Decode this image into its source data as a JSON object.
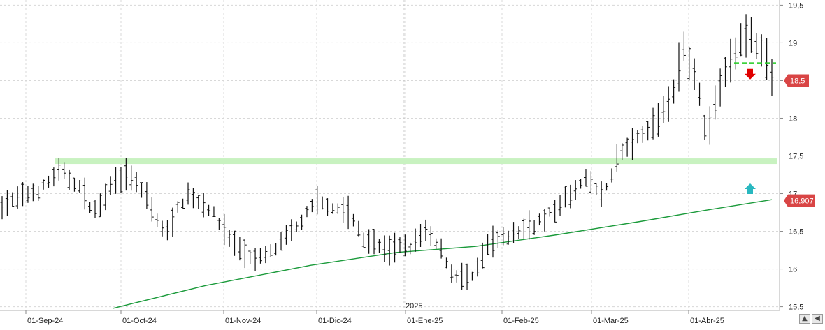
{
  "chart_data": {
    "type": "ohlc",
    "title": "",
    "xlabel": "",
    "ylabel": "",
    "ylim": [
      15.45,
      19.55
    ],
    "grid": true,
    "x_labels": [
      "01-Sep-24",
      "01-Oct-24",
      "01-Nov-24",
      "01-Dic-24",
      "01-Ene-25",
      "01-Feb-25",
      "01-Mar-25",
      "01-Abr-25"
    ],
    "year_marker": "2025",
    "y_ticks": [
      "15,5",
      "16",
      "16,5",
      "17",
      "17,5",
      "18",
      "18,5",
      "19",
      "19,5"
    ],
    "y_tick_values": [
      15.5,
      16,
      16.5,
      17,
      17.5,
      18,
      18.5,
      19,
      19.5
    ],
    "price_tags": [
      {
        "label": "18,5",
        "value": 18.5,
        "color": "#d94545"
      },
      {
        "label": "16,907",
        "value": 16.907,
        "color": "#d94545"
      }
    ],
    "support_line": {
      "value": 17.43,
      "from": "01-Sep-24",
      "color": "#c8f2c0"
    },
    "resistance_dashed": {
      "value": 18.73,
      "color": "#22cc22"
    },
    "moving_average": {
      "color": "#1a9a3a",
      "points": [
        [
          0.0,
          15.48
        ],
        [
          0.14,
          15.78
        ],
        [
          0.3,
          16.05
        ],
        [
          0.43,
          16.22
        ],
        [
          0.55,
          16.3
        ],
        [
          0.67,
          16.45
        ],
        [
          0.8,
          16.63
        ],
        [
          0.9,
          16.78
        ],
        [
          1.0,
          16.92
        ]
      ]
    },
    "markers": [
      {
        "name": "down-arrow-icon",
        "color": "#e00000",
        "value": 18.58
      },
      {
        "name": "up-arrow-icon",
        "color": "#29b8c0",
        "value": 17.06
      }
    ],
    "anchors": [
      [
        0.0,
        16.85
      ],
      [
        0.05,
        17.05
      ],
      [
        0.075,
        17.3
      ],
      [
        0.1,
        17.1
      ],
      [
        0.12,
        16.75
      ],
      [
        0.15,
        17.25
      ],
      [
        0.17,
        17.2
      ],
      [
        0.19,
        16.9
      ],
      [
        0.21,
        16.45
      ],
      [
        0.24,
        17.0
      ],
      [
        0.27,
        16.8
      ],
      [
        0.3,
        16.35
      ],
      [
        0.33,
        16.1
      ],
      [
        0.36,
        16.3
      ],
      [
        0.39,
        16.65
      ],
      [
        0.41,
        16.9
      ],
      [
        0.45,
        16.75
      ],
      [
        0.47,
        16.4
      ],
      [
        0.5,
        16.25
      ],
      [
        0.53,
        16.3
      ],
      [
        0.55,
        16.5
      ],
      [
        0.57,
        16.25
      ],
      [
        0.585,
        15.95
      ],
      [
        0.61,
        15.85
      ],
      [
        0.63,
        16.3
      ],
      [
        0.66,
        16.45
      ],
      [
        0.69,
        16.6
      ],
      [
        0.71,
        16.7
      ],
      [
        0.73,
        16.9
      ],
      [
        0.76,
        17.2
      ],
      [
        0.78,
        16.95
      ],
      [
        0.8,
        17.5
      ],
      [
        0.84,
        17.85
      ],
      [
        0.87,
        18.25
      ],
      [
        0.885,
        18.95
      ],
      [
        0.9,
        18.6
      ],
      [
        0.915,
        17.8
      ],
      [
        0.935,
        18.5
      ],
      [
        0.96,
        19.1
      ],
      [
        0.985,
        19.0
      ],
      [
        1.0,
        18.55
      ]
    ],
    "bar_count": 150,
    "noise_amplitude": 0.22
  },
  "controls": {
    "scroll_up_label": "▲",
    "scroll_left_label": "◀"
  }
}
